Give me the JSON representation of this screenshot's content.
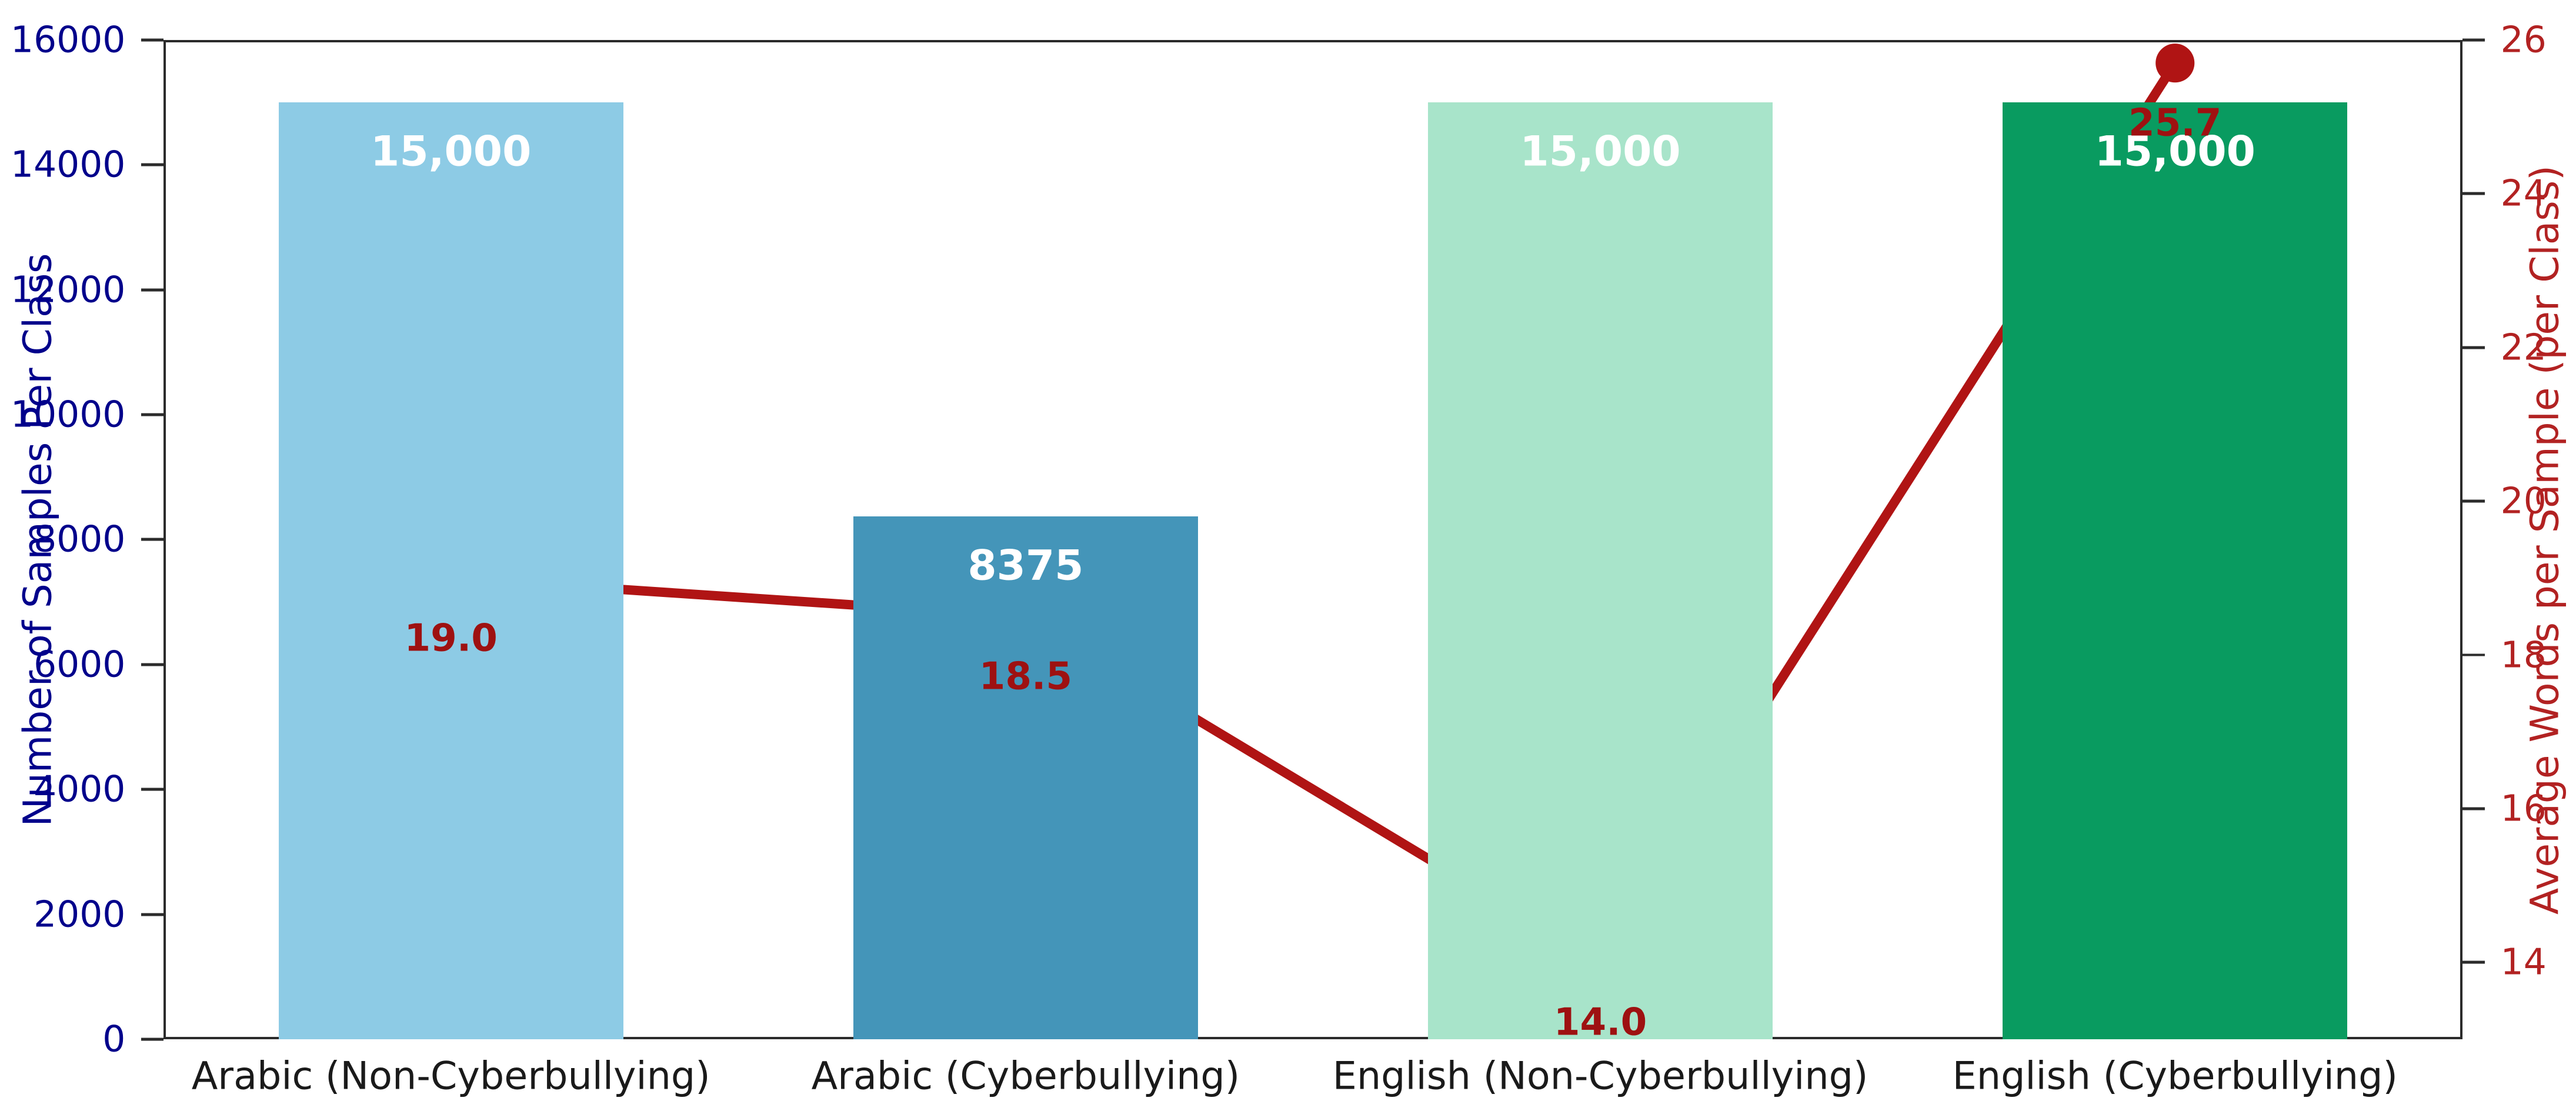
{
  "chart_data": {
    "type": "bar",
    "title": "",
    "grid": false,
    "categories": [
      "Arabic (Non-Cyberbullying)",
      "Arabic (Cyberbullying)",
      "English (Non-Cyberbullying)",
      "English (Cyberbullying)"
    ],
    "bar_width_fraction": 0.6,
    "series": [
      {
        "name": "Number of Samples Per Class",
        "type": "bar",
        "axis": "left",
        "values": [
          15000,
          8375,
          15000,
          15000
        ],
        "labels": [
          "15,000",
          "8375",
          "15,000",
          "15,000"
        ],
        "label_color": "#ffffff",
        "colors": [
          "#8DCBE5",
          "#4495B9",
          "#A8E4CA",
          "#099B60"
        ]
      },
      {
        "name": "Average Words per Sample (per Class)",
        "type": "line",
        "axis": "right",
        "values": [
          19.0,
          18.5,
          14.0,
          25.7
        ],
        "labels": [
          "19.0",
          "18.5",
          "14.0",
          "25.7"
        ],
        "color": "#B01414",
        "marker_color": "#B01414",
        "annotation_color": "#9E1111"
      }
    ],
    "left_axis": {
      "label": "Number of Samples Per Class",
      "color": "#00008B",
      "min": 0,
      "max": 16000,
      "ticks": [
        0,
        2000,
        4000,
        6000,
        8000,
        10000,
        12000,
        14000,
        16000
      ],
      "tick_labels": [
        "0",
        "2000",
        "4000",
        "6000",
        "8000",
        "10000",
        "12000",
        "14000",
        "16000"
      ]
    },
    "right_axis": {
      "label": "Average Words per Sample (per Class)",
      "color": "#B22222",
      "min": 13,
      "max": 26,
      "ticks": [
        14,
        16,
        18,
        20,
        22,
        24,
        26
      ],
      "tick_labels": [
        "14",
        "16",
        "18",
        "20",
        "22",
        "24",
        "26"
      ]
    },
    "spine_color": "#2b2b2b"
  }
}
